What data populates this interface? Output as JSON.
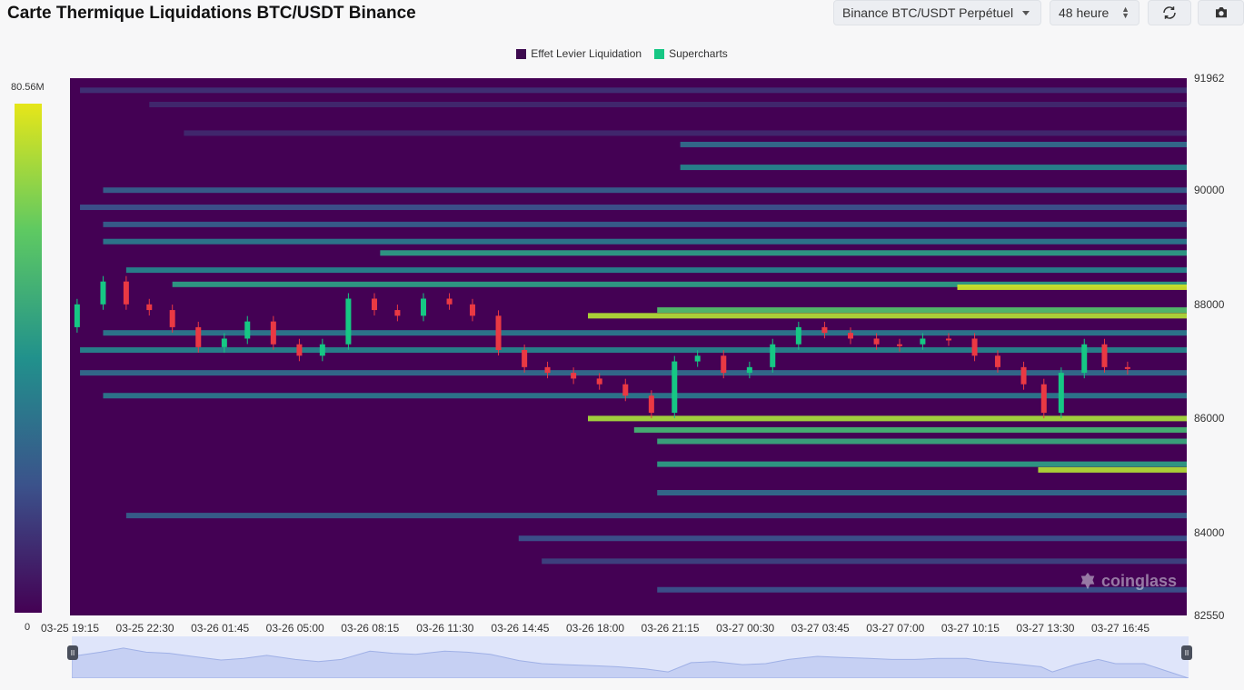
{
  "header": {
    "title": "Carte Thermique Liquidations BTC/USDT Binance",
    "exchange_select": "Binance BTC/USDT Perpétuel",
    "range_select": "48 heure"
  },
  "icons": {
    "refresh": "refresh-icon",
    "camera": "camera-icon"
  },
  "legend": [
    {
      "label": "Effet Levier Liquidation",
      "color": "#3d0a4f"
    },
    {
      "label": "Supercharts",
      "color": "#16c784"
    }
  ],
  "colorbar": {
    "max": "80.56M",
    "min": "0",
    "colors": [
      "#440154",
      "#3b528b",
      "#21918c",
      "#5ec962",
      "#e6e619"
    ]
  },
  "watermark": "coinglass",
  "chart_data": {
    "type": "heatmap",
    "y_axis": {
      "min": 82550,
      "max": 91962,
      "ticks": [
        "91962",
        "90000",
        "88000",
        "86000",
        "84000",
        "82550"
      ]
    },
    "x_axis": {
      "ticks": [
        "03-25 19:15",
        "03-25 22:30",
        "03-26 01:45",
        "03-26 05:00",
        "03-26 08:15",
        "03-26 11:30",
        "03-26 14:45",
        "03-26 18:00",
        "03-26 21:15",
        "03-27 00:30",
        "03-27 03:45",
        "03-27 07:00",
        "03-27 10:15",
        "03-27 13:30",
        "03-27 16:45"
      ]
    },
    "colorbar_range": [
      0,
      80.56
    ],
    "colorbar_unit": "M",
    "price_path": [
      {
        "t": "03-25 19:15",
        "p": 87600
      },
      {
        "t": "03-25 20:30",
        "p": 88000
      },
      {
        "t": "03-25 21:30",
        "p": 88400
      },
      {
        "t": "03-25 22:30",
        "p": 88000
      },
      {
        "t": "03-25 23:30",
        "p": 87900
      },
      {
        "t": "03-26 00:30",
        "p": 87600
      },
      {
        "t": "03-26 01:45",
        "p": 87250
      },
      {
        "t": "03-26 02:45",
        "p": 87400
      },
      {
        "t": "03-26 03:45",
        "p": 87700
      },
      {
        "t": "03-26 05:00",
        "p": 87300
      },
      {
        "t": "03-26 06:00",
        "p": 87100
      },
      {
        "t": "03-26 07:00",
        "p": 87300
      },
      {
        "t": "03-26 08:15",
        "p": 88100
      },
      {
        "t": "03-26 09:15",
        "p": 87900
      },
      {
        "t": "03-26 10:15",
        "p": 87800
      },
      {
        "t": "03-26 11:30",
        "p": 88100
      },
      {
        "t": "03-26 12:30",
        "p": 88000
      },
      {
        "t": "03-26 13:30",
        "p": 87800
      },
      {
        "t": "03-26 14:45",
        "p": 87200
      },
      {
        "t": "03-26 15:45",
        "p": 86900
      },
      {
        "t": "03-26 16:45",
        "p": 86800
      },
      {
        "t": "03-26 18:00",
        "p": 86700
      },
      {
        "t": "03-26 19:00",
        "p": 86600
      },
      {
        "t": "03-26 20:15",
        "p": 86400
      },
      {
        "t": "03-26 21:15",
        "p": 86100
      },
      {
        "t": "03-26 22:15",
        "p": 87000
      },
      {
        "t": "03-26 23:15",
        "p": 87100
      },
      {
        "t": "03-27 00:30",
        "p": 86800
      },
      {
        "t": "03-27 01:30",
        "p": 86900
      },
      {
        "t": "03-27 02:30",
        "p": 87300
      },
      {
        "t": "03-27 03:45",
        "p": 87600
      },
      {
        "t": "03-27 04:45",
        "p": 87500
      },
      {
        "t": "03-27 06:00",
        "p": 87400
      },
      {
        "t": "03-27 07:00",
        "p": 87300
      },
      {
        "t": "03-27 08:00",
        "p": 87300
      },
      {
        "t": "03-27 09:00",
        "p": 87400
      },
      {
        "t": "03-27 10:15",
        "p": 87400
      },
      {
        "t": "03-27 11:15",
        "p": 87100
      },
      {
        "t": "03-27 12:15",
        "p": 86900
      },
      {
        "t": "03-27 13:30",
        "p": 86600
      },
      {
        "t": "03-27 14:00",
        "p": 86100
      },
      {
        "t": "03-27 15:00",
        "p": 86800
      },
      {
        "t": "03-27 16:00",
        "p": 87300
      },
      {
        "t": "03-27 16:45",
        "p": 86900
      },
      {
        "t": "03-27 18:00",
        "p": 86900
      }
    ],
    "liquidation_bands": [
      {
        "price": 91750,
        "start": "03-25 20:00",
        "intensity": 0.15
      },
      {
        "price": 91500,
        "start": "03-25 23:00",
        "intensity": 0.12
      },
      {
        "price": 91000,
        "start": "03-26 00:30",
        "intensity": 0.12
      },
      {
        "price": 90800,
        "start": "03-26 22:00",
        "intensity": 0.35
      },
      {
        "price": 90400,
        "start": "03-26 22:00",
        "intensity": 0.45
      },
      {
        "price": 90000,
        "start": "03-25 21:00",
        "intensity": 0.3
      },
      {
        "price": 89700,
        "start": "03-25 20:00",
        "intensity": 0.25
      },
      {
        "price": 89400,
        "start": "03-25 21:00",
        "intensity": 0.3
      },
      {
        "price": 89100,
        "start": "03-25 21:00",
        "intensity": 0.4
      },
      {
        "price": 88900,
        "start": "03-26 09:00",
        "intensity": 0.55
      },
      {
        "price": 88600,
        "start": "03-25 22:00",
        "intensity": 0.45
      },
      {
        "price": 88350,
        "start": "03-26 00:00",
        "intensity": 0.55
      },
      {
        "price": 88300,
        "start": "03-27 10:00",
        "intensity": 0.95
      },
      {
        "price": 87900,
        "start": "03-26 21:00",
        "intensity": 0.7
      },
      {
        "price": 87800,
        "start": "03-26 18:00",
        "intensity": 0.9
      },
      {
        "price": 87500,
        "start": "03-25 21:00",
        "intensity": 0.4
      },
      {
        "price": 87200,
        "start": "03-25 20:00",
        "intensity": 0.45
      },
      {
        "price": 86800,
        "start": "03-25 20:00",
        "intensity": 0.35
      },
      {
        "price": 86400,
        "start": "03-25 21:00",
        "intensity": 0.4
      },
      {
        "price": 86000,
        "start": "03-26 18:00",
        "intensity": 0.88
      },
      {
        "price": 85800,
        "start": "03-26 20:00",
        "intensity": 0.65
      },
      {
        "price": 85600,
        "start": "03-26 21:00",
        "intensity": 0.6
      },
      {
        "price": 85200,
        "start": "03-26 21:00",
        "intensity": 0.55
      },
      {
        "price": 85100,
        "start": "03-27 13:30",
        "intensity": 0.9
      },
      {
        "price": 84700,
        "start": "03-26 21:00",
        "intensity": 0.35
      },
      {
        "price": 84300,
        "start": "03-25 22:00",
        "intensity": 0.3
      },
      {
        "price": 83900,
        "start": "03-26 15:00",
        "intensity": 0.25
      },
      {
        "price": 83500,
        "start": "03-26 16:00",
        "intensity": 0.2
      },
      {
        "price": 83000,
        "start": "03-26 21:00",
        "intensity": 0.25
      }
    ]
  }
}
